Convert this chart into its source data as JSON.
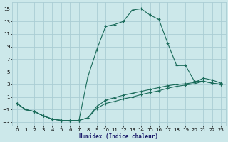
{
  "xlabel": "Humidex (Indice chaleur)",
  "bg_color": "#cce8ea",
  "grid_color": "#aacdd4",
  "line_color": "#1a6b5a",
  "xlim": [
    -0.5,
    23.5
  ],
  "ylim": [
    -3.5,
    16
  ],
  "xticks": [
    0,
    1,
    2,
    3,
    4,
    5,
    6,
    7,
    8,
    9,
    10,
    11,
    12,
    13,
    14,
    15,
    16,
    17,
    18,
    19,
    20,
    21,
    22,
    23
  ],
  "yticks": [
    -3,
    -1,
    1,
    3,
    5,
    7,
    9,
    11,
    13,
    15
  ],
  "series1_x": [
    0,
    1,
    2,
    3,
    4,
    5,
    6,
    7,
    8,
    9,
    10,
    11,
    12,
    13,
    14,
    15,
    16,
    17,
    18,
    19,
    20,
    21,
    22,
    23
  ],
  "series1_y": [
    0,
    -1,
    -1.3,
    -2.0,
    -2.5,
    -2.7,
    -2.7,
    -2.7,
    4.2,
    8.5,
    12.2,
    12.5,
    13.0,
    14.8,
    15.0,
    14.0,
    13.3,
    9.5,
    6.0,
    6.0,
    3.5,
    3.5,
    3.2,
    3.0
  ],
  "series2_x": [
    0,
    1,
    2,
    3,
    4,
    5,
    6,
    7,
    8,
    9,
    10,
    11,
    12,
    13,
    14,
    15,
    16,
    17,
    18,
    19,
    20,
    21,
    22,
    23
  ],
  "series2_y": [
    0,
    -1,
    -1.3,
    -2.0,
    -2.5,
    -2.7,
    -2.7,
    -2.7,
    -2.3,
    -0.5,
    0.5,
    0.9,
    1.3,
    1.6,
    1.9,
    2.2,
    2.5,
    2.8,
    3.0,
    3.1,
    3.3,
    4.0,
    3.7,
    3.2
  ],
  "series3_x": [
    0,
    1,
    2,
    3,
    4,
    5,
    6,
    7,
    8,
    9,
    10,
    11,
    12,
    13,
    14,
    15,
    16,
    17,
    18,
    19,
    20,
    21,
    22,
    23
  ],
  "series3_y": [
    0,
    -1,
    -1.3,
    -2.0,
    -2.5,
    -2.7,
    -2.7,
    -2.7,
    -2.3,
    -0.8,
    0.0,
    0.3,
    0.7,
    1.0,
    1.4,
    1.7,
    2.0,
    2.4,
    2.7,
    2.9,
    3.1,
    3.5,
    3.2,
    3.0
  ]
}
